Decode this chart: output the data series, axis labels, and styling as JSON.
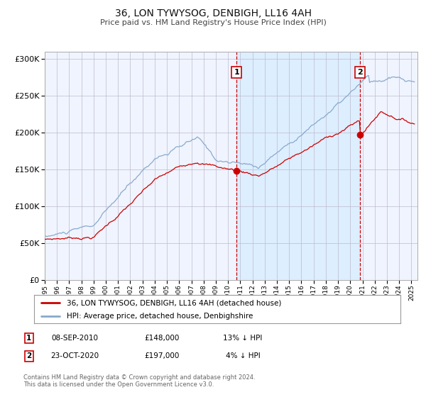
{
  "title": "36, LON TYWYSOG, DENBIGH, LL16 4AH",
  "subtitle": "Price paid vs. HM Land Registry's House Price Index (HPI)",
  "xlim": [
    1995.0,
    2025.5
  ],
  "ylim": [
    0,
    310000
  ],
  "yticks": [
    0,
    50000,
    100000,
    150000,
    200000,
    250000,
    300000
  ],
  "ytick_labels": [
    "£0",
    "£50K",
    "£100K",
    "£150K",
    "£200K",
    "£250K",
    "£300K"
  ],
  "xtick_years": [
    1995,
    1996,
    1997,
    1998,
    1999,
    2000,
    2001,
    2002,
    2003,
    2004,
    2005,
    2006,
    2007,
    2008,
    2009,
    2010,
    2011,
    2012,
    2013,
    2014,
    2015,
    2016,
    2017,
    2018,
    2019,
    2020,
    2021,
    2022,
    2023,
    2024,
    2025
  ],
  "sale1_x": 2010.69,
  "sale1_y": 148000,
  "sale1_label": "1",
  "sale2_x": 2020.81,
  "sale2_y": 197000,
  "sale2_label": "2",
  "shade_start": 2010.69,
  "shade_end": 2020.81,
  "red_line_color": "#cc0000",
  "blue_line_color": "#88aacc",
  "dot_color": "#cc0000",
  "background_color": "#ffffff",
  "plot_bg_color": "#f0f4ff",
  "shade_color": "#ddeeff",
  "grid_color": "#bbbbcc",
  "legend_label_red": "36, LON TYWYSOG, DENBIGH, LL16 4AH (detached house)",
  "legend_label_blue": "HPI: Average price, detached house, Denbighshire",
  "annot1_date": "08-SEP-2010",
  "annot1_price": "£148,000",
  "annot1_hpi": "13% ↓ HPI",
  "annot2_date": "23-OCT-2020",
  "annot2_price": "£197,000",
  "annot2_hpi": "4% ↓ HPI",
  "footnote": "Contains HM Land Registry data © Crown copyright and database right 2024.\nThis data is licensed under the Open Government Licence v3.0."
}
